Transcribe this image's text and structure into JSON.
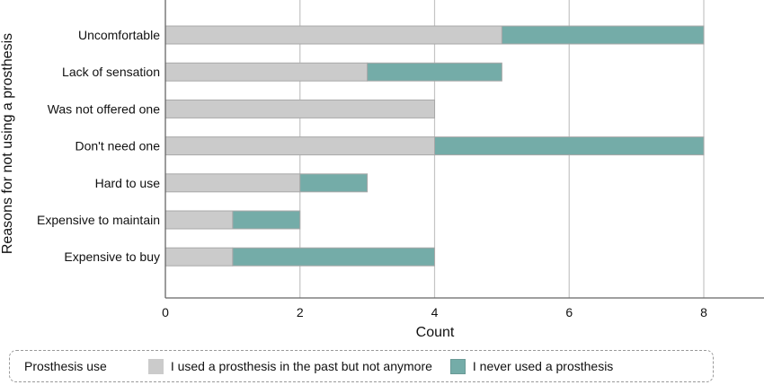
{
  "chart_data": {
    "type": "bar",
    "orientation": "horizontal",
    "stacked": true,
    "title": "",
    "xlabel": "Count",
    "ylabel": "Reasons for not using a prosthesis",
    "xlim": [
      0,
      8.9
    ],
    "xticks": [
      0,
      2,
      4,
      6,
      8
    ],
    "grid": true,
    "legend_position": "bottom",
    "categories": [
      "Uncomfortable",
      "Lack of sensation",
      "Was not offered one",
      "Don't need one",
      "Hard to use",
      "Expensive to maintain",
      "Expensive to buy"
    ],
    "series": [
      {
        "name": "I used a prosthesis in the past but not anymore",
        "color": "#cbcbcb",
        "values": [
          5,
          3,
          4,
          4,
          2,
          1,
          1
        ]
      },
      {
        "name": "I never used a prosthesis",
        "color": "#74aca8",
        "values": [
          3,
          2,
          0,
          4,
          1,
          1,
          3
        ]
      }
    ]
  },
  "legend": {
    "title": "Prosthesis use",
    "items": [
      {
        "label": "I used a prosthesis in the past but not anymore",
        "color": "#cbcbcb"
      },
      {
        "label": "I never used a prosthesis",
        "color": "#74aca8"
      }
    ]
  },
  "colors": {
    "grid": "#c4c4c4",
    "axis": "#666666",
    "bar_border": "#a8a8a8"
  }
}
